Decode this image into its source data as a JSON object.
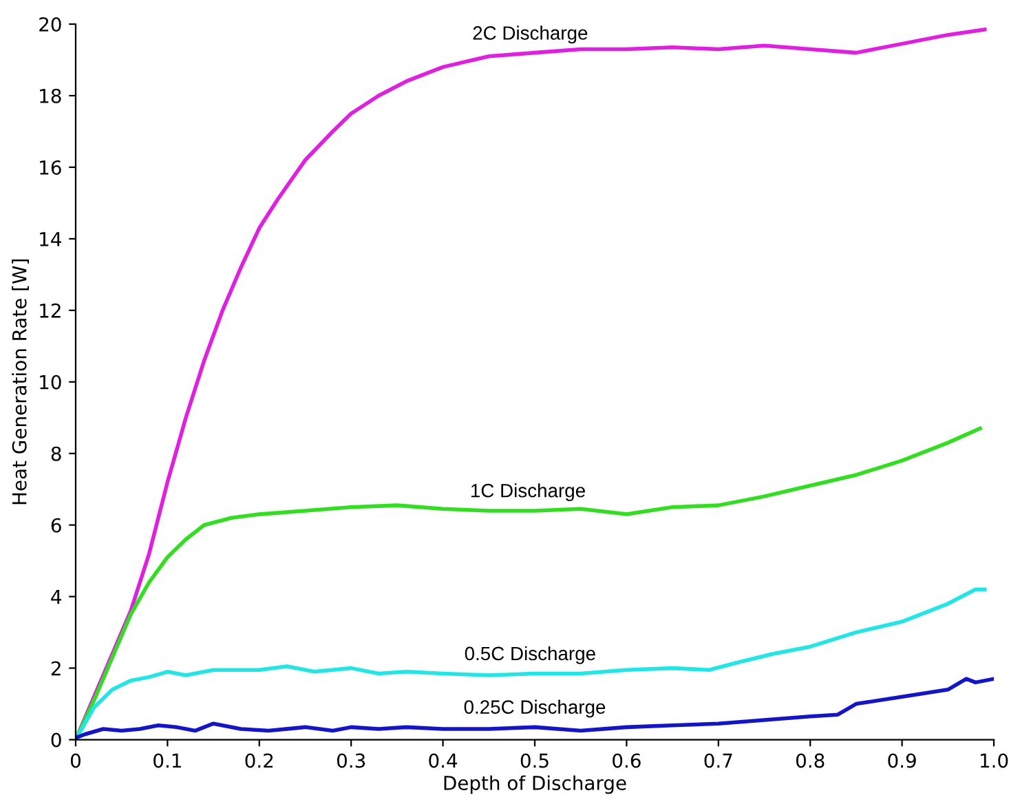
{
  "chart_data": {
    "type": "line",
    "xlabel": "Depth of Discharge",
    "ylabel": "Heat Generation Rate [W]",
    "xlim": [
      0,
      1.0
    ],
    "ylim": [
      0,
      20
    ],
    "xticks": [
      0,
      0.1,
      0.2,
      0.3,
      0.4,
      0.5,
      0.6,
      0.7,
      0.8,
      0.9,
      {
        "value": 1.0,
        "label": "1.0"
      }
    ],
    "yticks": [
      0,
      2,
      4,
      6,
      8,
      10,
      12,
      14,
      16,
      18,
      20
    ],
    "grid": false,
    "legend": false,
    "marker": "none",
    "line_style": "solid",
    "series": [
      {
        "name": "2C Discharge",
        "color": "#e020e0",
        "x": [
          0,
          0.02,
          0.04,
          0.06,
          0.08,
          0.1,
          0.12,
          0.14,
          0.16,
          0.18,
          0.2,
          0.22,
          0.25,
          0.28,
          0.3,
          0.33,
          0.36,
          0.4,
          0.45,
          0.5,
          0.55,
          0.6,
          0.65,
          0.7,
          0.75,
          0.8,
          0.85,
          0.9,
          0.95,
          0.99
        ],
        "values": [
          0,
          1.2,
          2.4,
          3.6,
          5.2,
          7.2,
          9.0,
          10.6,
          12.0,
          13.2,
          14.3,
          15.1,
          16.2,
          17.0,
          17.5,
          18.0,
          18.4,
          18.8,
          19.1,
          19.2,
          19.3,
          19.3,
          19.35,
          19.3,
          19.4,
          19.3,
          19.2,
          19.45,
          19.7,
          19.85
        ]
      },
      {
        "name": "1C Discharge",
        "color": "#33dd22",
        "x": [
          0,
          0.02,
          0.04,
          0.06,
          0.08,
          0.1,
          0.12,
          0.14,
          0.17,
          0.2,
          0.25,
          0.3,
          0.35,
          0.4,
          0.45,
          0.5,
          0.55,
          0.6,
          0.65,
          0.7,
          0.75,
          0.8,
          0.85,
          0.9,
          0.95,
          0.985
        ],
        "values": [
          0,
          1.1,
          2.3,
          3.5,
          4.4,
          5.1,
          5.6,
          6.0,
          6.2,
          6.3,
          6.4,
          6.5,
          6.55,
          6.45,
          6.4,
          6.4,
          6.45,
          6.3,
          6.5,
          6.55,
          6.8,
          7.1,
          7.4,
          7.8,
          8.3,
          8.7
        ]
      },
      {
        "name": "0.5C Discharge",
        "color": "#22e5e5",
        "x": [
          0,
          0.02,
          0.04,
          0.06,
          0.08,
          0.1,
          0.12,
          0.15,
          0.2,
          0.23,
          0.26,
          0.3,
          0.33,
          0.36,
          0.4,
          0.45,
          0.5,
          0.55,
          0.6,
          0.65,
          0.69,
          0.72,
          0.76,
          0.8,
          0.85,
          0.9,
          0.95,
          0.98,
          0.99
        ],
        "values": [
          0,
          0.9,
          1.4,
          1.65,
          1.75,
          1.9,
          1.8,
          1.95,
          1.95,
          2.05,
          1.9,
          2.0,
          1.85,
          1.9,
          1.85,
          1.8,
          1.85,
          1.85,
          1.95,
          2.0,
          1.95,
          2.15,
          2.4,
          2.6,
          3.0,
          3.3,
          3.8,
          4.2,
          4.2
        ]
      },
      {
        "name": "0.25C Discharge",
        "color": "#1515c8",
        "x": [
          0,
          0.01,
          0.03,
          0.05,
          0.07,
          0.09,
          0.11,
          0.13,
          0.15,
          0.18,
          0.21,
          0.25,
          0.28,
          0.3,
          0.33,
          0.36,
          0.4,
          0.45,
          0.5,
          0.55,
          0.6,
          0.65,
          0.7,
          0.75,
          0.8,
          0.83,
          0.85,
          0.9,
          0.95,
          0.97,
          0.98,
          1.0
        ],
        "values": [
          0.05,
          0.15,
          0.3,
          0.25,
          0.3,
          0.4,
          0.35,
          0.25,
          0.45,
          0.3,
          0.25,
          0.35,
          0.25,
          0.35,
          0.3,
          0.35,
          0.3,
          0.3,
          0.35,
          0.25,
          0.35,
          0.4,
          0.45,
          0.55,
          0.65,
          0.7,
          1.0,
          1.2,
          1.4,
          1.7,
          1.6,
          1.7
        ]
      }
    ]
  }
}
